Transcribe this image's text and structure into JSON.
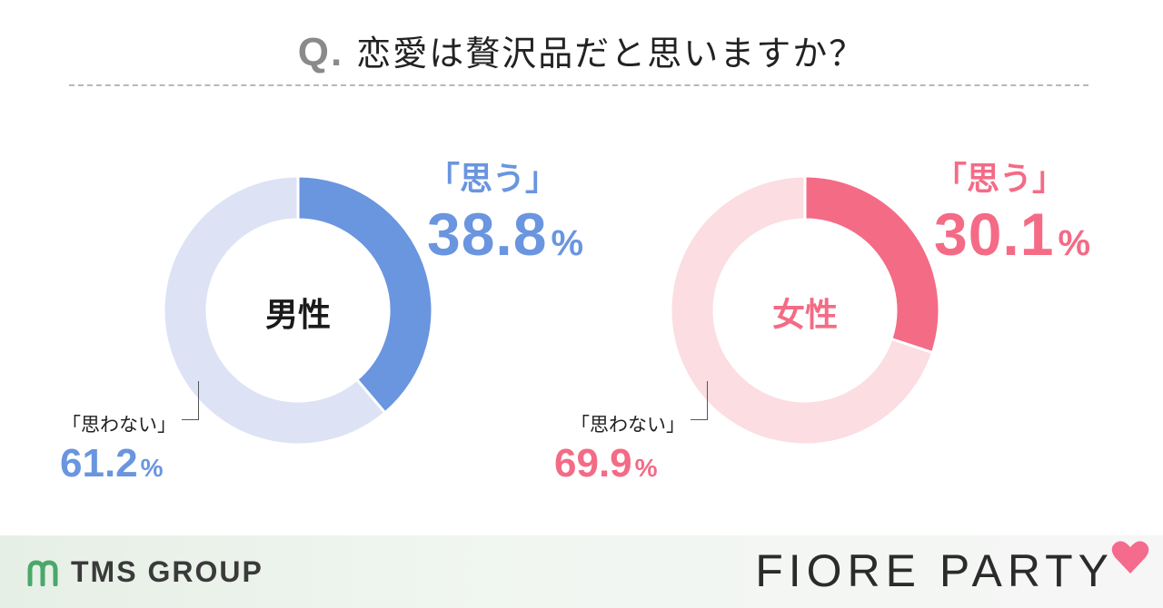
{
  "title": {
    "q": "Q.",
    "text": "恋愛は贅沢品だと思いますか？"
  },
  "colors": {
    "male_main": "#6a95df",
    "male_light": "#dde3f5",
    "female_main": "#f46b86",
    "female_light": "#fbdde2",
    "tms_green": "#4aa86a",
    "heart_pink": "#f46b8e"
  },
  "chart_data": [
    {
      "type": "pie",
      "center_label": "男性",
      "slices": [
        {
          "label": "「思う」",
          "value": 38.8,
          "pct_text": "38.8",
          "unit": "%"
        },
        {
          "label": "「思わない」",
          "value": 61.2,
          "pct_text": "61.2",
          "unit": "%"
        }
      ]
    },
    {
      "type": "pie",
      "center_label": "女性",
      "slices": [
        {
          "label": "「思う」",
          "value": 30.1,
          "pct_text": "30.1",
          "unit": "%"
        },
        {
          "label": "「思わない」",
          "value": 69.9,
          "pct_text": "69.9",
          "unit": "%"
        }
      ]
    }
  ],
  "footer": {
    "left_logo": "TMS GROUP",
    "right_logo": "FIORE PARTY"
  }
}
